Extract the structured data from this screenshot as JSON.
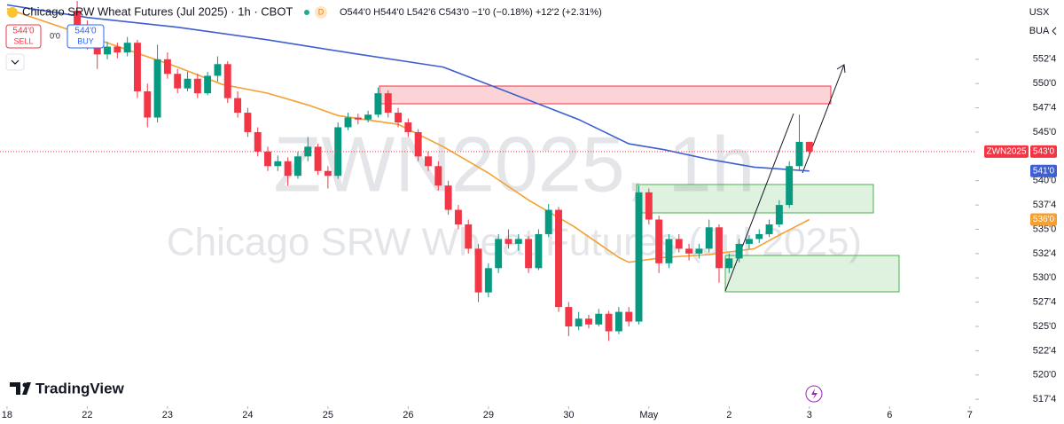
{
  "chart_data": {
    "type": "candlestick",
    "title": "Chicago SRW Wheat Futures (Jul 2025) · 1h · CBOT",
    "ohlc_legend": "O544'0 H544'0 L542'6 C543'0 −1'0 (−0.18%) +12'2 (+2.31%)",
    "up_color": "#089981",
    "down_color": "#f23645",
    "x": [
      14,
      16,
      18,
      20,
      22,
      24,
      26,
      28,
      30,
      32,
      34,
      36,
      38,
      40,
      42,
      44,
      46,
      48,
      50,
      52,
      54,
      56,
      58,
      60,
      62,
      64,
      66,
      68,
      70,
      72,
      74,
      76,
      78,
      80,
      82,
      84,
      86,
      88,
      90,
      92,
      94,
      96,
      98,
      100,
      102,
      104,
      106,
      108,
      110,
      112,
      114,
      116,
      118,
      120,
      122,
      124,
      126,
      128,
      130,
      132,
      134,
      136,
      138,
      140,
      142,
      144,
      146,
      148,
      150,
      152,
      154,
      156,
      158,
      160
    ],
    "open": [
      557.5,
      556,
      554,
      553,
      553.8,
      553.2,
      554.2,
      549.2,
      546.5,
      552.5,
      551,
      549.5,
      550.5,
      549,
      550.8,
      552,
      548.5,
      547,
      545,
      543,
      541.5,
      542,
      540.5,
      542.5,
      543.5,
      541,
      540.5,
      545.5,
      546.5,
      546.3,
      546.8,
      549,
      547,
      546,
      545,
      542.5,
      541.5,
      539.5,
      537,
      535.5,
      533,
      528.5,
      531,
      534,
      533.5,
      534,
      531,
      534.5,
      537,
      527,
      525,
      525.8,
      525.2,
      526.3,
      524.5,
      526.5,
      525.5,
      538.8,
      536,
      531.5,
      534,
      533,
      532.5,
      533,
      535.2,
      531,
      532,
      533.5,
      534,
      534.5,
      535.5,
      537.5,
      541.5,
      544
    ],
    "high": [
      558.5,
      556.5,
      554.5,
      554.3,
      554.2,
      554.8,
      554.5,
      550,
      554,
      553.2,
      551.5,
      551.2,
      551,
      551.2,
      552.8,
      552.3,
      549.2,
      547.5,
      545.5,
      543.5,
      542.6,
      542.4,
      543,
      544.5,
      543.8,
      541.5,
      546,
      547,
      546.9,
      547.2,
      549.6,
      549.3,
      547.5,
      546.4,
      545.3,
      543,
      542,
      540,
      537.5,
      536,
      533.5,
      531.5,
      534.5,
      535,
      534.5,
      534.3,
      535,
      537.6,
      537.3,
      527.5,
      526.5,
      526.2,
      526.8,
      526.6,
      527,
      527,
      539.5,
      539.2,
      536.4,
      534.5,
      534.5,
      533.5,
      533.5,
      536,
      535.5,
      532.5,
      534,
      534.4,
      535,
      536,
      538,
      542,
      546.8,
      544
    ],
    "low": [
      555.5,
      553.5,
      551.5,
      552.5,
      552.6,
      552.8,
      548.5,
      545.5,
      546,
      550.5,
      549,
      549.2,
      548.5,
      548.8,
      550.2,
      548,
      546.5,
      544.5,
      542.5,
      541,
      541,
      539.5,
      540.2,
      542,
      540.6,
      539.2,
      540.2,
      545.2,
      545.8,
      546,
      546.5,
      546.5,
      545.5,
      544.5,
      542,
      541,
      539,
      536.5,
      535,
      532.5,
      527.5,
      528,
      530.5,
      533,
      532.8,
      530.5,
      530.8,
      534.2,
      526.5,
      524,
      524.6,
      524.8,
      525,
      523.5,
      524.2,
      525,
      525.2,
      535.5,
      530.5,
      531,
      532.6,
      531.8,
      532,
      532.6,
      529.5,
      530.5,
      531.6,
      533,
      533.6,
      534.2,
      535.2,
      537.2,
      541,
      542.75
    ],
    "close": [
      556,
      554,
      553,
      553.8,
      553.2,
      554.2,
      549.2,
      546.5,
      552.5,
      551,
      549.5,
      550.5,
      549,
      550.8,
      552,
      548.5,
      547,
      545,
      543,
      541.5,
      542,
      540.5,
      542.5,
      543.5,
      541,
      540.5,
      545.5,
      546.5,
      546.3,
      546.8,
      549,
      547,
      546,
      545,
      542.5,
      541.5,
      539.5,
      537,
      535.5,
      533,
      528.5,
      531,
      534,
      533.5,
      534,
      531,
      534.5,
      537,
      527,
      525,
      525.8,
      525.2,
      526.3,
      524.5,
      526.5,
      525.5,
      538.8,
      536,
      531.5,
      534,
      533,
      532.5,
      533,
      535.2,
      531,
      532,
      533.5,
      534,
      534.5,
      535.5,
      537.5,
      541.5,
      544,
      543
    ],
    "moving_averages": [
      {
        "color": "#3d5fd1",
        "x": [
          0,
          16,
          34,
          52,
          69,
          87,
          96,
          105,
          114,
          124,
          131,
          140,
          149,
          160
        ],
        "values": [
          558.1,
          556.8,
          555.8,
          554.5,
          553.1,
          551.7,
          549.9,
          548.1,
          546.3,
          543.8,
          543.2,
          542.2,
          541.4,
          541
        ],
        "end_label": {
          "value": 541,
          "label": "541'0"
        }
      },
      {
        "color": "#f5a030",
        "x": [
          0,
          16,
          34,
          43,
          52,
          60,
          66,
          78,
          87,
          96,
          104,
          113,
          122,
          124,
          131,
          140,
          149,
          154,
          160
        ],
        "values": [
          557.7,
          554.9,
          551.7,
          549.9,
          549,
          547.8,
          546.7,
          545.8,
          543.5,
          540.8,
          538,
          535.3,
          532.1,
          531.6,
          532.1,
          532.4,
          533,
          534.4,
          536
        ],
        "end_label": {
          "value": 536,
          "label": "536'0"
        }
      }
    ],
    "last_price": {
      "symbol": "ZWN2025",
      "value": 543,
      "label": "543'0"
    },
    "xlim": [
      -1.4,
      193.1
    ],
    "ylim": [
      516.6,
      558.6
    ],
    "xticks": [
      {
        "value": 0,
        "label": "18"
      },
      {
        "value": 16,
        "label": "22"
      },
      {
        "value": 32,
        "label": "23"
      },
      {
        "value": 48,
        "label": "24"
      },
      {
        "value": 64,
        "label": "25"
      },
      {
        "value": 80,
        "label": "26"
      },
      {
        "value": 96,
        "label": "29"
      },
      {
        "value": 112,
        "label": "30"
      },
      {
        "value": 128,
        "label": "May"
      },
      {
        "value": 144,
        "label": "2"
      },
      {
        "value": 160,
        "label": "3"
      },
      {
        "value": 176,
        "label": "6"
      },
      {
        "value": 192,
        "label": "7"
      }
    ],
    "yticks": [
      {
        "value": 552.5,
        "label": "552'4"
      },
      {
        "value": 550,
        "label": "550'0"
      },
      {
        "value": 547.5,
        "label": "547'4"
      },
      {
        "value": 545,
        "label": "545'0"
      },
      {
        "value": 540,
        "label": "540'0"
      },
      {
        "value": 537.5,
        "label": "537'4"
      },
      {
        "value": 535,
        "label": "535'0"
      },
      {
        "value": 532.5,
        "label": "532'4"
      },
      {
        "value": 530,
        "label": "530'0"
      },
      {
        "value": 527.5,
        "label": "527'4"
      },
      {
        "value": 525,
        "label": "525'0"
      },
      {
        "value": 522.5,
        "label": "522'4"
      },
      {
        "value": 520,
        "label": "520'0"
      },
      {
        "value": 517.5,
        "label": "517'4"
      }
    ]
  },
  "ui": {
    "sell": {
      "price": "544'0",
      "label": "SELL"
    },
    "spread": "0'0",
    "buy": {
      "price": "544'0",
      "label": "BUY"
    },
    "interval_badge": "D",
    "currency": "USX",
    "market": "BUA",
    "watermark": {
      "symbol": "ZWN2025, 1h",
      "name": "Chicago SRW Wheat Futures (Jul 2025)"
    },
    "logo": "TradingView"
  }
}
